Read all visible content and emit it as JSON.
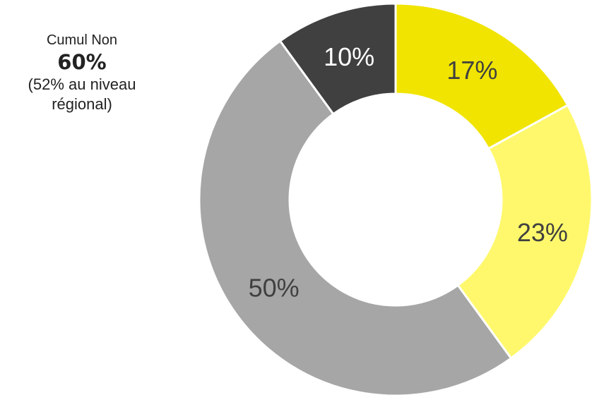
{
  "annotation": {
    "line1": "Cumul Non",
    "line2": "60%",
    "line3": "(52% au niveau",
    "line4": "régional)"
  },
  "chart_data": {
    "type": "pie",
    "variant": "donut",
    "title": "",
    "categories": [
      "",
      "",
      "",
      ""
    ],
    "values": [
      17,
      23,
      50,
      10
    ],
    "labels": [
      "17%",
      "23%",
      "50%",
      "10%"
    ],
    "colors": [
      "#F0E400",
      "#FFF86C",
      "#A6A6A6",
      "#404040"
    ],
    "label_colors": [
      "#404040",
      "#404040",
      "#404040",
      "#FFFFFF"
    ],
    "legend": "none"
  }
}
